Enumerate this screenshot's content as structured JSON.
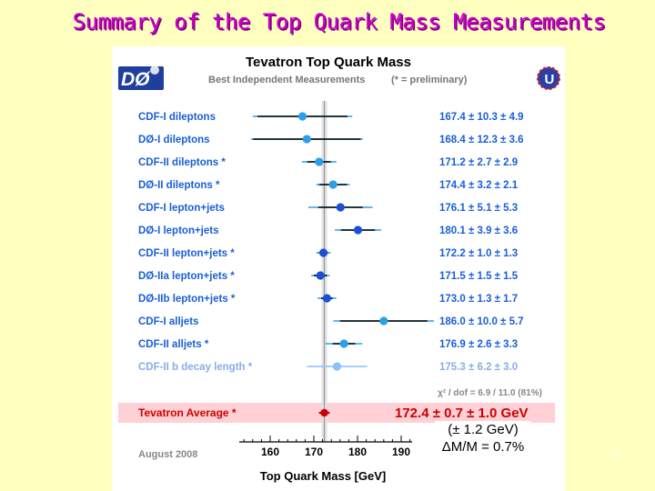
{
  "slide": {
    "title": "Summary of the Top Quark Mass Measurements",
    "page_number": "21"
  },
  "note": {
    "line1": "(± 1.2 GeV)",
    "line2": "ΔM/M = 0.7%"
  },
  "colors": {
    "slide_background": "#ffffc0",
    "title": "#cc00cc",
    "label_text": "#1a5fd6",
    "value_text": "#1a5fd6",
    "point": "#1a4fd6",
    "point_light": "#2aa0e8",
    "average": "#cc0000",
    "average_band": "#ffd0d6",
    "average_line": "#bbbbbb",
    "errbar": "#000000"
  },
  "chart_data": {
    "type": "scatter",
    "title": "Tevatron Top Quark Mass",
    "subtitle": "Best Independent Measurements",
    "subtitle_note": "(* = preliminary)",
    "xlabel": "Top Quark Mass   [GeV]",
    "xlim": [
      150,
      197
    ],
    "xticks": [
      160,
      170,
      180,
      190
    ],
    "date_label": "August 2008",
    "chi2_label": "χ² / dof = 6.9 / 11.0 (81%)",
    "measurements": [
      {
        "label": "CDF-I   dileptons",
        "mass": 167.4,
        "stat": 10.3,
        "syst": 4.9,
        "value_text": "167.4  ±  10.3  ±  4.9",
        "style": "dark"
      },
      {
        "label": "DØ-I   dileptons",
        "mass": 168.4,
        "stat": 12.3,
        "syst": 3.6,
        "value_text": "168.4  ±  12.3  ±  3.6",
        "style": "dark"
      },
      {
        "label": "CDF-II   dileptons *",
        "mass": 171.2,
        "stat": 2.7,
        "syst": 2.9,
        "value_text": "171.2  ±    2.7  ±  2.9",
        "style": "dark"
      },
      {
        "label": "DØ-II   dileptons *",
        "mass": 174.4,
        "stat": 3.2,
        "syst": 2.1,
        "value_text": "174.4  ±    3.2  ±  2.1",
        "style": "dark"
      },
      {
        "label": "CDF-I   lepton+jets",
        "mass": 176.1,
        "stat": 5.1,
        "syst": 5.3,
        "value_text": "176.1  ±    5.1  ±  5.3",
        "style": "dark"
      },
      {
        "label": "DØ-I   lepton+jets",
        "mass": 180.1,
        "stat": 3.9,
        "syst": 3.6,
        "value_text": "180.1  ±    3.9  ±  3.6",
        "style": "dark"
      },
      {
        "label": "CDF-II   lepton+jets *",
        "mass": 172.2,
        "stat": 1.0,
        "syst": 1.3,
        "value_text": "172.2  ±    1.0  ±  1.3",
        "style": "dark"
      },
      {
        "label": "DØ-IIa   lepton+jets *",
        "mass": 171.5,
        "stat": 1.5,
        "syst": 1.5,
        "value_text": "171.5  ±    1.5  ±  1.5",
        "style": "dark"
      },
      {
        "label": "DØ-IIb   lepton+jets *",
        "mass": 173.0,
        "stat": 1.3,
        "syst": 1.7,
        "value_text": "173.0  ±    1.3  ±  1.7",
        "style": "dark"
      },
      {
        "label": "CDF-I   alljets",
        "mass": 186.0,
        "stat": 10.0,
        "syst": 5.7,
        "value_text": "186.0  ±  10.0  ±  5.7",
        "style": "dark"
      },
      {
        "label": "CDF-II   alljets *",
        "mass": 176.9,
        "stat": 2.6,
        "syst": 3.3,
        "value_text": "176.9  ±    2.6  ±  3.3",
        "style": "dark"
      },
      {
        "label": "CDF-II   b decay length *",
        "mass": 175.3,
        "stat": 6.2,
        "syst": 3.0,
        "value_text": "175.3  ±    6.2  ±  3.0",
        "style": "light"
      }
    ],
    "average": {
      "label": "Tevatron Average *",
      "mass": 172.4,
      "stat": 0.7,
      "syst": 1.0,
      "value_text": "172.4  ±  0.7  ±  1.0  GeV"
    },
    "grid": false,
    "legend": "none"
  }
}
